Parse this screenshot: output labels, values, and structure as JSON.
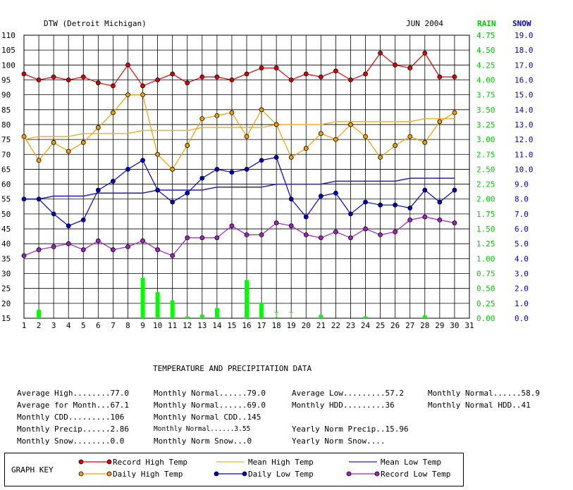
{
  "header": {
    "station": "DTW (Detroit Michigan)",
    "period": "JUN 2004",
    "rain_label": "RAIN",
    "snow_label": "SNOW"
  },
  "colors": {
    "record_high": "#e00000",
    "daily_high": "#f0a000",
    "mean_high": "#f0b030",
    "daily_low": "#0000c8",
    "mean_low": "#2020c0",
    "record_low": "#a020c0",
    "rain": "#00ff00",
    "rain_axis": "#00cc00",
    "snow_axis": "#0000cc"
  },
  "chart_data": {
    "type": "line",
    "x": [
      1,
      2,
      3,
      4,
      5,
      6,
      7,
      8,
      9,
      10,
      11,
      12,
      13,
      14,
      15,
      16,
      17,
      18,
      19,
      20,
      21,
      22,
      23,
      24,
      25,
      26,
      27,
      28,
      29,
      30
    ],
    "x_ticks": [
      1,
      2,
      3,
      4,
      5,
      6,
      7,
      8,
      9,
      10,
      11,
      12,
      13,
      14,
      15,
      16,
      17,
      18,
      19,
      20,
      21,
      22,
      23,
      24,
      25,
      26,
      27,
      28,
      29,
      30,
      31
    ],
    "xlim": [
      1,
      31
    ],
    "ylim": [
      15,
      110
    ],
    "y_ticks": [
      15,
      20,
      25,
      30,
      35,
      40,
      45,
      50,
      55,
      60,
      65,
      70,
      75,
      80,
      85,
      90,
      95,
      100,
      105,
      110
    ],
    "rain_ticks": [
      "0.00",
      "0.25",
      "0.50",
      "0.75",
      "1.00",
      "1.25",
      "1.50",
      "1.75",
      "2.00",
      "2.25",
      "2.50",
      "2.75",
      "3.00",
      "3.25",
      "3.50",
      "3.75",
      "4.00",
      "4.25",
      "4.50",
      "4.75"
    ],
    "snow_ticks": [
      "0.0",
      "1.0",
      "2.0",
      "3.0",
      "4.0",
      "5.0",
      "6.0",
      "7.0",
      "8.0",
      "9.0",
      "10.0",
      "11.0",
      "12.0",
      "13.0",
      "14.0",
      "15.0",
      "16.0",
      "17.0",
      "18.0",
      "19.0"
    ],
    "rain_ylim": [
      0,
      4.75
    ],
    "grid": true,
    "series": [
      {
        "name": "Record High Temp",
        "key": "record_high",
        "markers": true,
        "values": [
          97,
          95,
          96,
          95,
          96,
          94,
          93,
          100,
          93,
          95,
          97,
          94,
          96,
          96,
          95,
          97,
          99,
          99,
          95,
          97,
          96,
          98,
          95,
          97,
          104,
          100,
          99,
          104,
          96,
          96
        ]
      },
      {
        "name": "Mean High Temp",
        "key": "mean_high",
        "markers": false,
        "values": [
          75,
          76,
          76,
          76,
          77,
          77,
          77,
          77,
          78,
          78,
          78,
          78,
          79,
          79,
          79,
          79,
          79,
          80,
          80,
          80,
          80,
          81,
          81,
          81,
          81,
          81,
          81,
          82,
          82,
          82
        ]
      },
      {
        "name": "Daily High Temp",
        "key": "daily_high",
        "markers": true,
        "values": [
          76,
          68,
          74,
          71,
          74,
          79,
          84,
          90,
          90,
          70,
          65,
          73,
          82,
          83,
          84,
          76,
          85,
          80,
          69,
          72,
          77,
          75,
          80,
          76,
          69,
          73,
          76,
          74,
          81,
          84
        ]
      },
      {
        "name": "Mean Low Temp",
        "key": "mean_low",
        "markers": false,
        "values": [
          55,
          55,
          56,
          56,
          56,
          57,
          57,
          57,
          57,
          58,
          58,
          58,
          58,
          59,
          59,
          59,
          59,
          60,
          60,
          60,
          60,
          61,
          61,
          61,
          61,
          61,
          62,
          62,
          62,
          62
        ]
      },
      {
        "name": "Daily Low Temp",
        "key": "daily_low",
        "markers": true,
        "values": [
          55,
          55,
          50,
          46,
          48,
          58,
          61,
          65,
          68,
          58,
          54,
          57,
          62,
          65,
          64,
          65,
          68,
          69,
          55,
          49,
          56,
          57,
          50,
          54,
          53,
          53,
          52,
          58,
          54,
          58
        ]
      },
      {
        "name": "Record Low Temp",
        "key": "record_low",
        "markers": true,
        "values": [
          36,
          38,
          39,
          40,
          38,
          41,
          38,
          39,
          41,
          38,
          36,
          42,
          42,
          42,
          46,
          43,
          43,
          47,
          46,
          43,
          42,
          44,
          42,
          45,
          43,
          44,
          48,
          49,
          48,
          47
        ]
      }
    ],
    "precip": {
      "days": [
        2,
        9,
        10,
        11,
        12,
        13,
        14,
        16,
        17,
        18,
        19,
        21,
        24,
        28
      ],
      "values": [
        0.14,
        0.68,
        0.44,
        0.3,
        0.03,
        0.06,
        0.17,
        0.64,
        0.26,
        0.0,
        0.0,
        0.06,
        0.03,
        0.05
      ],
      "trace_days": [
        18,
        19
      ],
      "trace_label": "T"
    }
  },
  "stats": {
    "title": "TEMPERATURE AND PRECIPITATION DATA",
    "rows": [
      [
        "Average High........77.0",
        "Monthly Normal......79.0",
        "Average Low.........57.2",
        "Monthly Normal......58.9"
      ],
      [
        "Average for Month...67.1",
        "Monthly Normal......69.0",
        "Monthly HDD.........36",
        "Monthly Normal HDD..41"
      ],
      [
        "Monthly CDD.........106",
        "Monthly Normal CDD..145",
        "",
        ""
      ],
      [
        "Monthly Precip......2.86",
        "Monthly Normal......3.55",
        "Yearly Norm Precip..15.96",
        ""
      ],
      [
        "Monthly Snow........0.0",
        "Monthly Norm Snow...0",
        "Yearly Norm Snow....",
        ""
      ]
    ]
  },
  "key": {
    "title": "GRAPH KEY",
    "items": [
      {
        "label": "Record High Temp",
        "key": "record_high",
        "markers": true
      },
      {
        "label": "Mean High Temp",
        "key": "mean_high",
        "markers": false
      },
      {
        "label": "Mean Low Temp",
        "key": "mean_low",
        "markers": false
      },
      {
        "label": "Daily High Temp",
        "key": "daily_high",
        "markers": true
      },
      {
        "label": "Daily Low Temp",
        "key": "daily_low",
        "markers": true
      },
      {
        "label": "Record Low Temp",
        "key": "record_low",
        "markers": true
      }
    ]
  }
}
